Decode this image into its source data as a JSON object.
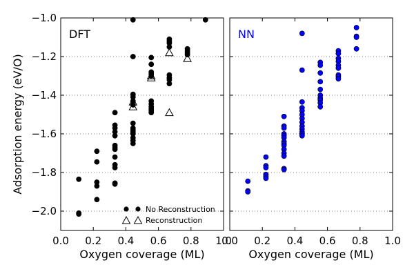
{
  "chart_data": [
    {
      "type": "scatter",
      "panel_label": "DFT",
      "panel_label_color": "#000000",
      "xlabel": "Oxygen coverage (ML)",
      "ylabel": "Adsorption energy (eV/O)",
      "xlim": [
        0.0,
        1.0
      ],
      "ylim": [
        -2.1,
        -1.0
      ],
      "x_ticks": [
        "0.0",
        "0.2",
        "0.4",
        "0.6",
        "0.8",
        "1.0"
      ],
      "y_ticks": [
        "−2.0",
        "−1.8",
        "−1.6",
        "−1.4",
        "−1.2",
        "−1.0"
      ],
      "grid": "horizontal dotted",
      "legend_position": "bottom-right",
      "series": [
        {
          "name": "No Reconstruction",
          "marker": "filled-circle",
          "color": "#000000",
          "points": [
            [
              0.111,
              -1.835
            ],
            [
              0.111,
              -2.01
            ],
            [
              0.111,
              -2.015
            ],
            [
              0.222,
              -1.69
            ],
            [
              0.222,
              -1.745
            ],
            [
              0.222,
              -1.85
            ],
            [
              0.222,
              -1.87
            ],
            [
              0.222,
              -1.94
            ],
            [
              0.333,
              -1.49
            ],
            [
              0.333,
              -1.555
            ],
            [
              0.333,
              -1.57
            ],
            [
              0.333,
              -1.59
            ],
            [
              0.333,
              -1.61
            ],
            [
              0.333,
              -1.66
            ],
            [
              0.333,
              -1.67
            ],
            [
              0.333,
              -1.68
            ],
            [
              0.333,
              -1.72
            ],
            [
              0.333,
              -1.76
            ],
            [
              0.333,
              -1.775
            ],
            [
              0.333,
              -1.855
            ],
            [
              0.333,
              -1.86
            ],
            [
              0.444,
              -1.01
            ],
            [
              0.444,
              -1.2
            ],
            [
              0.444,
              -1.395
            ],
            [
              0.444,
              -1.41
            ],
            [
              0.444,
              -1.43
            ],
            [
              0.444,
              -1.45
            ],
            [
              0.444,
              -1.545
            ],
            [
              0.444,
              -1.57
            ],
            [
              0.444,
              -1.58
            ],
            [
              0.444,
              -1.59
            ],
            [
              0.444,
              -1.6
            ],
            [
              0.444,
              -1.62
            ],
            [
              0.444,
              -1.635
            ],
            [
              0.444,
              -1.65
            ],
            [
              0.556,
              -1.205
            ],
            [
              0.556,
              -1.24
            ],
            [
              0.556,
              -1.28
            ],
            [
              0.556,
              -1.29
            ],
            [
              0.556,
              -1.3
            ],
            [
              0.556,
              -1.43
            ],
            [
              0.556,
              -1.445
            ],
            [
              0.556,
              -1.46
            ],
            [
              0.556,
              -1.47
            ],
            [
              0.556,
              -1.48
            ],
            [
              0.556,
              -1.49
            ],
            [
              0.667,
              -1.11
            ],
            [
              0.667,
              -1.12
            ],
            [
              0.667,
              -1.13
            ],
            [
              0.667,
              -1.15
            ],
            [
              0.667,
              -1.295
            ],
            [
              0.667,
              -1.31
            ],
            [
              0.667,
              -1.32
            ],
            [
              0.667,
              -1.34
            ],
            [
              0.778,
              -1.16
            ],
            [
              0.778,
              -1.17
            ],
            [
              0.778,
              -1.18
            ],
            [
              0.778,
              -1.19
            ],
            [
              0.889,
              -1.01
            ]
          ]
        },
        {
          "name": "Reconstruction",
          "marker": "open-triangle",
          "color": "#000000",
          "points": [
            [
              0.444,
              -1.435
            ],
            [
              0.444,
              -1.46
            ],
            [
              0.556,
              -1.3
            ],
            [
              0.556,
              -1.31
            ],
            [
              0.667,
              -1.18
            ],
            [
              0.667,
              -1.49
            ],
            [
              0.778,
              -1.21
            ]
          ]
        }
      ],
      "legend": [
        {
          "label": "No Reconstruction",
          "marker": "filled-circle"
        },
        {
          "label": "Reconstruction",
          "marker": "open-triangle"
        }
      ]
    },
    {
      "type": "scatter",
      "panel_label": "NN",
      "panel_label_color": "#0000ff",
      "xlabel": "Oxygen coverage (ML)",
      "xlim": [
        0.0,
        1.0
      ],
      "ylim": [
        -2.1,
        -1.0
      ],
      "x_ticks": [
        "0.0",
        "0.2",
        "0.4",
        "0.6",
        "0.8",
        "1.0"
      ],
      "grid": "horizontal dotted",
      "series": [
        {
          "marker": "filled-circle",
          "color": "#0000ff",
          "points": [
            [
              0.111,
              -1.845
            ],
            [
              0.111,
              -1.895
            ],
            [
              0.111,
              -1.9
            ],
            [
              0.222,
              -1.72
            ],
            [
              0.222,
              -1.765
            ],
            [
              0.222,
              -1.775
            ],
            [
              0.222,
              -1.81
            ],
            [
              0.222,
              -1.82
            ],
            [
              0.222,
              -1.83
            ],
            [
              0.333,
              -1.51
            ],
            [
              0.333,
              -1.56
            ],
            [
              0.333,
              -1.57
            ],
            [
              0.333,
              -1.6
            ],
            [
              0.333,
              -1.61
            ],
            [
              0.333,
              -1.62
            ],
            [
              0.333,
              -1.64
            ],
            [
              0.333,
              -1.65
            ],
            [
              0.333,
              -1.66
            ],
            [
              0.333,
              -1.68
            ],
            [
              0.333,
              -1.7
            ],
            [
              0.333,
              -1.715
            ],
            [
              0.333,
              -1.78
            ],
            [
              0.333,
              -1.785
            ],
            [
              0.444,
              -1.08
            ],
            [
              0.444,
              -1.27
            ],
            [
              0.444,
              -1.435
            ],
            [
              0.444,
              -1.465
            ],
            [
              0.444,
              -1.48
            ],
            [
              0.444,
              -1.5
            ],
            [
              0.444,
              -1.52
            ],
            [
              0.444,
              -1.54
            ],
            [
              0.444,
              -1.56
            ],
            [
              0.444,
              -1.575
            ],
            [
              0.444,
              -1.59
            ],
            [
              0.444,
              -1.6
            ],
            [
              0.444,
              -1.61
            ],
            [
              0.556,
              -1.23
            ],
            [
              0.556,
              -1.245
            ],
            [
              0.556,
              -1.285
            ],
            [
              0.556,
              -1.33
            ],
            [
              0.556,
              -1.37
            ],
            [
              0.556,
              -1.4
            ],
            [
              0.556,
              -1.415
            ],
            [
              0.556,
              -1.425
            ],
            [
              0.556,
              -1.44
            ],
            [
              0.556,
              -1.46
            ],
            [
              0.667,
              -1.17
            ],
            [
              0.667,
              -1.185
            ],
            [
              0.667,
              -1.21
            ],
            [
              0.667,
              -1.225
            ],
            [
              0.667,
              -1.245
            ],
            [
              0.667,
              -1.26
            ],
            [
              0.667,
              -1.295
            ],
            [
              0.667,
              -1.305
            ],
            [
              0.667,
              -1.315
            ],
            [
              0.778,
              -1.05
            ],
            [
              0.778,
              -1.095
            ],
            [
              0.778,
              -1.1
            ],
            [
              0.778,
              -1.16
            ]
          ]
        }
      ]
    }
  ]
}
